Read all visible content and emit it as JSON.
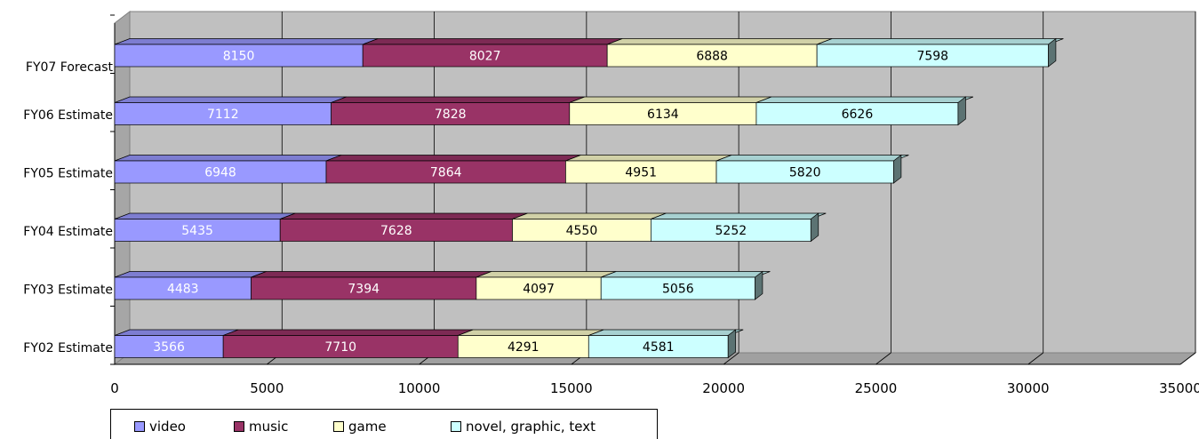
{
  "chart_data": {
    "type": "bar",
    "orientation": "horizontal",
    "stacked": true,
    "style": "3d",
    "categories": [
      "FY02 Estimate",
      "FY03 Estimate",
      "FY04 Estimate",
      "FY05 Estimate",
      "FY06 Estimate",
      "FY07 Forecast"
    ],
    "series": [
      {
        "name": "video",
        "values": [
          3566,
          4483,
          5435,
          6948,
          7112,
          8150
        ],
        "color": "#9999ff",
        "label_color": "#ffffff"
      },
      {
        "name": "music",
        "values": [
          7710,
          7394,
          7628,
          7864,
          7828,
          8027
        ],
        "color": "#993366",
        "label_color": "#ffffff"
      },
      {
        "name": "game",
        "values": [
          4291,
          4097,
          4550,
          4951,
          6134,
          6888
        ],
        "color": "#ffffcc",
        "label_color": "#000000"
      },
      {
        "name": "novel, graphic, text",
        "values": [
          4581,
          5056,
          5252,
          5820,
          6626,
          7598
        ],
        "color": "#ccffff",
        "label_color": "#000000"
      }
    ],
    "xlim": [
      0,
      35000
    ],
    "xticks": [
      "0",
      "5000",
      "10000",
      "15000",
      "20000",
      "25000",
      "30000",
      "35000"
    ],
    "grid": true,
    "legend": "bottom",
    "background": "#c0c0c0"
  }
}
